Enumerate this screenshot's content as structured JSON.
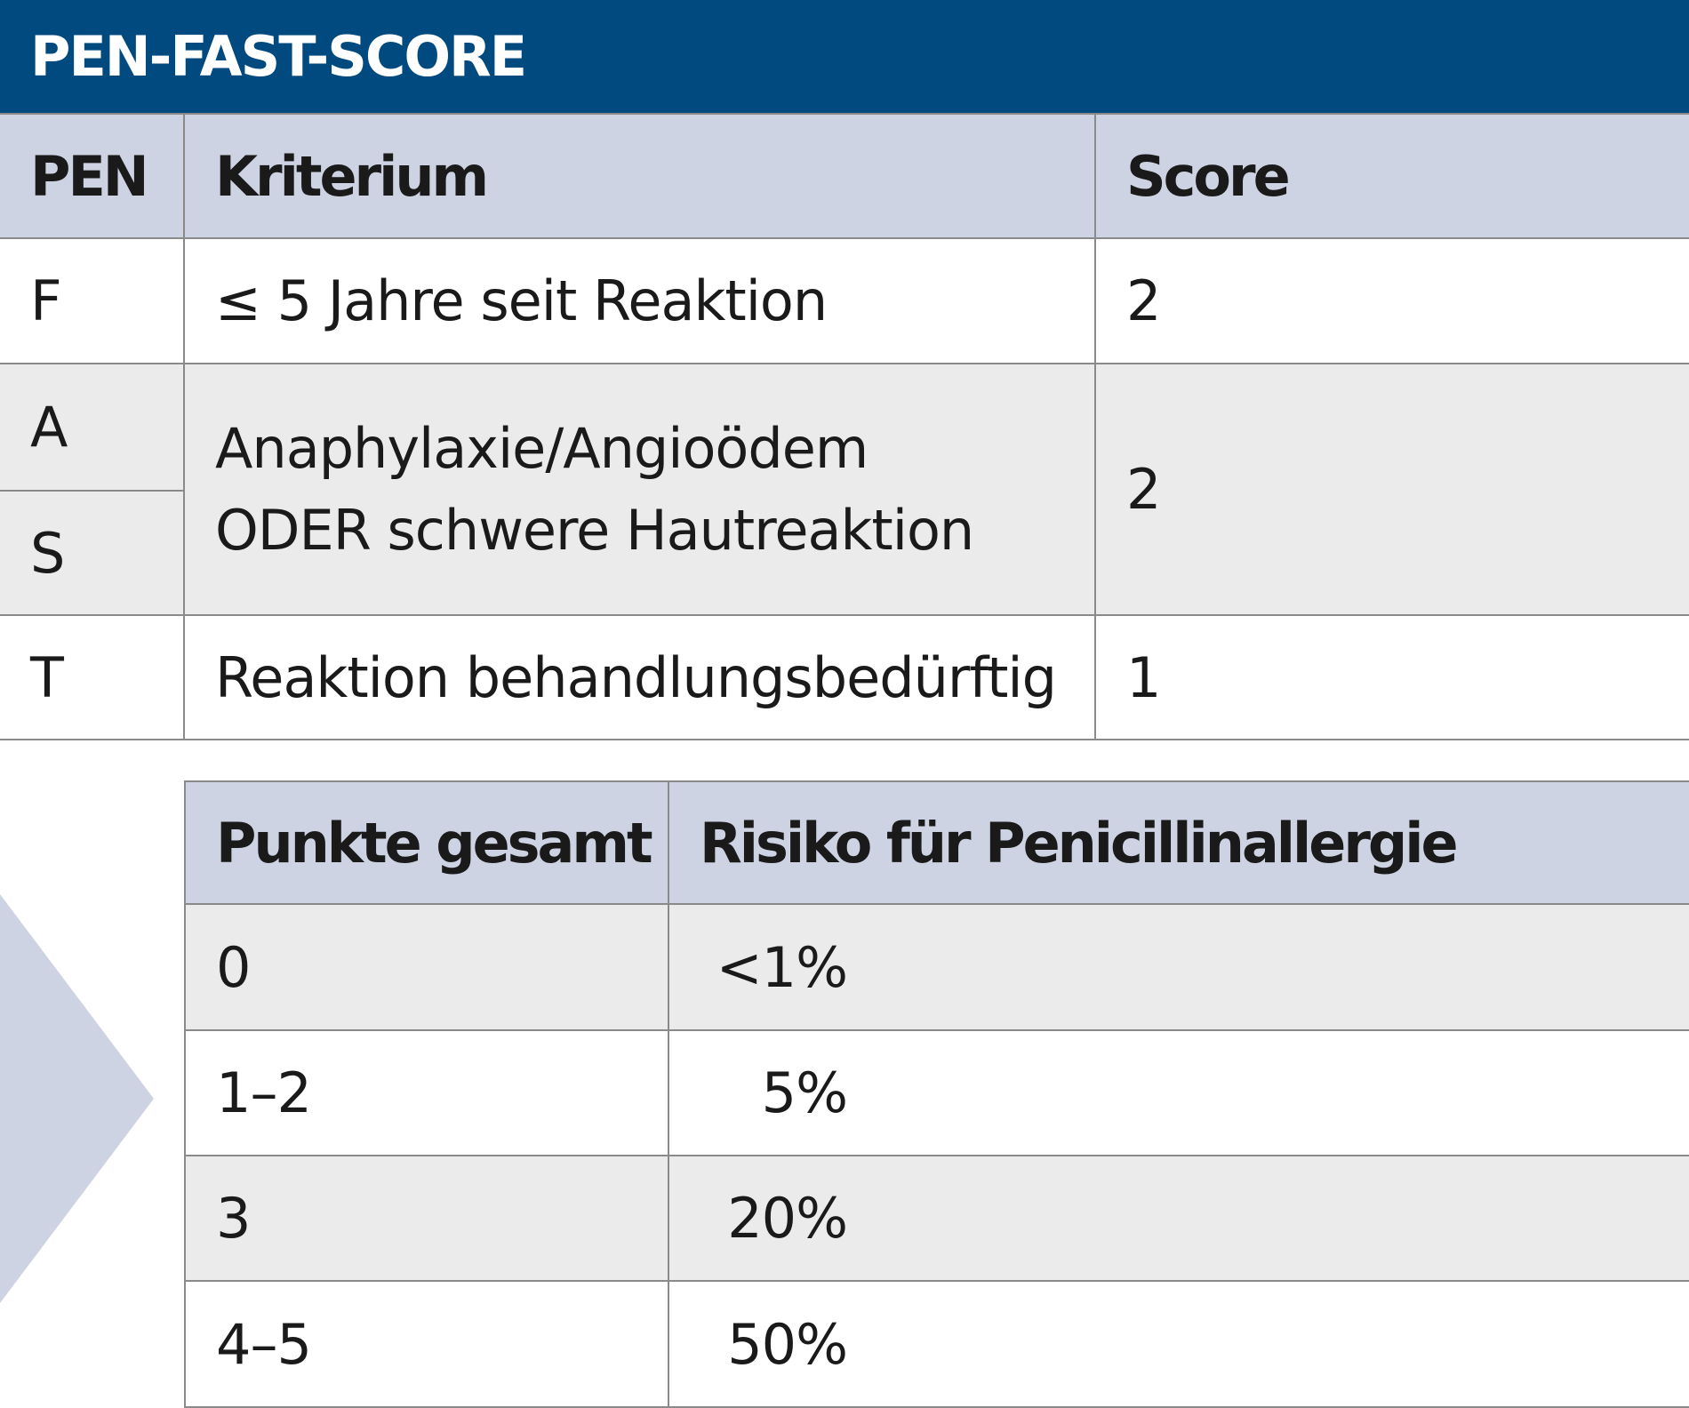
{
  "title": "PEN-FAST-SCORE",
  "criteria_table": {
    "headers": [
      "PEN",
      "Kriterium",
      "Score"
    ],
    "rows": [
      {
        "letter": "F",
        "criterion": "≤ 5 Jahre seit Reaktion",
        "score": "2"
      },
      {
        "letter": "A",
        "letter2": "S",
        "criterion_line1": "Anaphylaxie/Angioödem",
        "criterion_line2": "ODER schwere Hautreaktion",
        "score": "2"
      },
      {
        "letter": "T",
        "criterion": "Reaktion behandlungsbedürftig",
        "score": "1"
      }
    ]
  },
  "risk_table": {
    "headers": [
      "Punkte gesamt",
      "Risiko für Penicillinallergie"
    ],
    "rows": [
      {
        "points": "0",
        "risk": "<1%"
      },
      {
        "points": "1–2",
        "risk": "5%"
      },
      {
        "points": "3",
        "risk": "20%"
      },
      {
        "points": "4–5",
        "risk": "50%"
      }
    ]
  },
  "colors": {
    "title_bar": "#004a7f",
    "header": "#cdd3e3",
    "shaded_row": "#ebebeb"
  }
}
